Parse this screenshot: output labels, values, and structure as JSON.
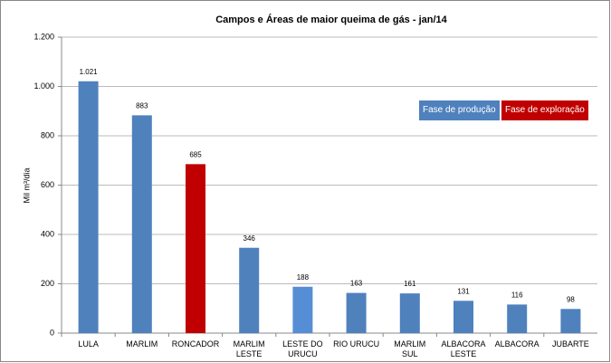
{
  "chart_data": {
    "type": "bar",
    "title": "Campos e Áreas de maior queima de gás - jan/14",
    "y_label": "Mil m³/dia",
    "categories": [
      "LULA",
      "MARLIM",
      "RONCADOR",
      "MARLIM LESTE",
      "LESTE DO URUCU",
      "RIO URUCU",
      "MARLIM SUL",
      "ALBACORA LESTE",
      "ALBACORA",
      "JUBARTE"
    ],
    "values": [
      1021,
      883,
      685,
      346,
      188,
      163,
      161,
      131,
      116,
      98
    ],
    "value_labels": [
      "1.021",
      "883",
      "685",
      "346",
      "188",
      "163",
      "161",
      "131",
      "116",
      "98"
    ],
    "colors": [
      "#4f81bd",
      "#4f81bd",
      "#c00000",
      "#4f81bd",
      "#558ed5",
      "#4f81bd",
      "#4f81bd",
      "#4f81bd",
      "#4f81bd",
      "#4f81bd"
    ],
    "ylim": [
      0,
      1200
    ],
    "yticks": [
      0,
      200,
      400,
      600,
      800,
      {
        "value": 1000,
        "label": "1.000"
      },
      {
        "value": 1200,
        "label": "1.200"
      }
    ],
    "grid": true,
    "legend": [
      {
        "label": "Fase de produção",
        "color": "#4f81bd"
      },
      {
        "label": "Fase de exploração",
        "color": "#c00000"
      }
    ]
  }
}
